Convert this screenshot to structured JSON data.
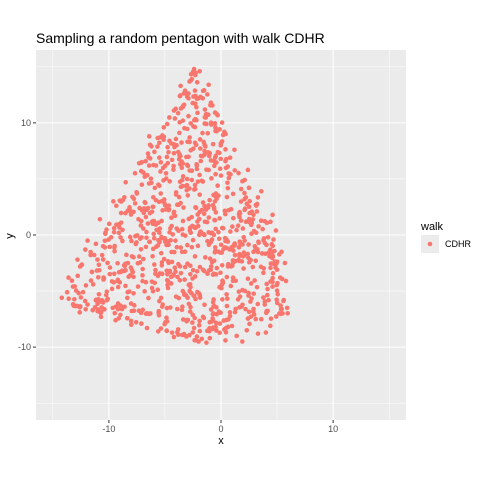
{
  "chart_data": {
    "type": "scatter",
    "title": "Sampling a random pentagon with walk CDHR",
    "xlabel": "x",
    "ylabel": "y",
    "xlim": [
      -16.5,
      16.5
    ],
    "ylim": [
      -16.5,
      16.5
    ],
    "x_ticks": [
      -10,
      0,
      10
    ],
    "y_ticks": [
      -10,
      0,
      10
    ],
    "x_tick_labels": [
      "-10",
      "0",
      "10"
    ],
    "y_tick_labels": [
      "-10",
      "0",
      "10"
    ],
    "grid": true,
    "legend": {
      "title": "walk",
      "position": "right",
      "entries": [
        "CDHR"
      ]
    },
    "colors": {
      "panel": "#ebebeb",
      "grid": "#ffffff",
      "point": "#f8766d"
    },
    "region_vertices": [
      [
        -2.3,
        15.0
      ],
      [
        -14.5,
        -6.0
      ],
      [
        -2.0,
        -9.5
      ],
      [
        6.0,
        -7.0
      ],
      [
        5.0,
        0.0
      ]
    ],
    "series": [
      {
        "name": "CDHR",
        "sample_size": 1000,
        "points": [
          [
            -2.4,
            14.8
          ],
          [
            -1.9,
            14.6
          ],
          [
            -2.6,
            13.9
          ],
          [
            -3.1,
            12.6
          ],
          [
            -1.5,
            12.9
          ],
          [
            -0.9,
            11.8
          ],
          [
            -4.2,
            11.1
          ],
          [
            -2.2,
            11.4
          ],
          [
            -0.4,
            10.8
          ],
          [
            -5.1,
            9.6
          ],
          [
            -3.4,
            10.2
          ],
          [
            -1.3,
            9.9
          ],
          [
            0.3,
            9.2
          ],
          [
            -6.2,
            7.9
          ],
          [
            -4.6,
            8.4
          ],
          [
            -2.8,
            8.7
          ],
          [
            -0.7,
            8.1
          ],
          [
            1.2,
            7.6
          ],
          [
            -7.3,
            6.4
          ],
          [
            -5.5,
            6.9
          ],
          [
            -3.7,
            7.2
          ],
          [
            -1.8,
            6.6
          ],
          [
            0.6,
            6.1
          ],
          [
            2.4,
            5.8
          ],
          [
            -8.5,
            4.7
          ],
          [
            -6.8,
            5.2
          ],
          [
            -4.9,
            5.5
          ],
          [
            -2.6,
            4.9
          ],
          [
            -0.3,
            4.4
          ],
          [
            1.8,
            4.1
          ],
          [
            3.6,
            3.9
          ],
          [
            -9.6,
            3.0
          ],
          [
            -7.9,
            3.4
          ],
          [
            -5.8,
            3.1
          ],
          [
            -3.9,
            2.7
          ],
          [
            -1.6,
            2.9
          ],
          [
            0.9,
            2.3
          ],
          [
            3.2,
            2.1
          ],
          [
            4.6,
            1.8
          ],
          [
            -10.8,
            1.4
          ],
          [
            -8.9,
            1.1
          ],
          [
            -6.7,
            1.6
          ],
          [
            -4.4,
            0.8
          ],
          [
            -2.1,
            1.2
          ],
          [
            0.2,
            0.6
          ],
          [
            2.7,
            0.9
          ],
          [
            4.9,
            0.4
          ],
          [
            -11.9,
            -0.5
          ],
          [
            -9.8,
            -0.2
          ],
          [
            -7.6,
            -0.8
          ],
          [
            -5.3,
            -0.3
          ],
          [
            -3.0,
            -0.9
          ],
          [
            -0.8,
            -0.4
          ],
          [
            1.6,
            -1.1
          ],
          [
            3.9,
            -0.7
          ],
          [
            5.4,
            -1.5
          ],
          [
            -12.8,
            -2.2
          ],
          [
            -10.6,
            -1.8
          ],
          [
            -8.3,
            -2.5
          ],
          [
            -6.1,
            -1.9
          ],
          [
            -3.8,
            -2.6
          ],
          [
            -1.4,
            -2.0
          ],
          [
            0.9,
            -2.8
          ],
          [
            3.1,
            -2.3
          ],
          [
            5.0,
            -3.1
          ],
          [
            -13.6,
            -3.8
          ],
          [
            -11.5,
            -3.3
          ],
          [
            -9.2,
            -4.0
          ],
          [
            -7.0,
            -3.6
          ],
          [
            -4.7,
            -4.2
          ],
          [
            -2.3,
            -3.7
          ],
          [
            0.1,
            -4.4
          ],
          [
            2.4,
            -3.9
          ],
          [
            4.6,
            -4.6
          ],
          [
            5.8,
            -4.1
          ],
          [
            -14.2,
            -5.6
          ],
          [
            -12.3,
            -5.1
          ],
          [
            -10.1,
            -5.7
          ],
          [
            -7.8,
            -5.2
          ],
          [
            -5.5,
            -5.9
          ],
          [
            -3.1,
            -5.4
          ],
          [
            -0.7,
            -6.0
          ],
          [
            1.7,
            -5.5
          ],
          [
            3.9,
            -6.2
          ],
          [
            5.6,
            -5.8
          ],
          [
            -13.1,
            -6.3
          ],
          [
            -11.0,
            -6.8
          ],
          [
            -8.6,
            -6.4
          ],
          [
            -6.3,
            -7.0
          ],
          [
            -3.9,
            -6.6
          ],
          [
            -1.6,
            -7.3
          ],
          [
            0.8,
            -6.9
          ],
          [
            3.1,
            -7.5
          ],
          [
            5.2,
            -7.0
          ],
          [
            -9.4,
            -7.6
          ],
          [
            -7.1,
            -7.9
          ],
          [
            -4.8,
            -7.7
          ],
          [
            -2.4,
            -8.3
          ],
          [
            -0.1,
            -7.9
          ],
          [
            2.3,
            -8.5
          ],
          [
            4.4,
            -8.1
          ],
          [
            -5.6,
            -8.6
          ],
          [
            -3.3,
            -8.9
          ],
          [
            -1.0,
            -9.2
          ],
          [
            1.4,
            -9.0
          ],
          [
            3.3,
            -8.8
          ],
          [
            -2.0,
            -9.5
          ],
          [
            0.4,
            -9.4
          ],
          [
            -3.6,
            13.3
          ],
          [
            -1.1,
            13.4
          ],
          [
            -2.9,
            10.6
          ],
          [
            -4.8,
            9.9
          ],
          [
            -0.5,
            9.6
          ],
          [
            -6.4,
            8.8
          ],
          [
            -3.5,
            6.0
          ],
          [
            -5.9,
            4.2
          ],
          [
            -8.1,
            2.2
          ],
          [
            -10.3,
            0.2
          ],
          [
            -12.1,
            -1.3
          ],
          [
            -13.2,
            -4.6
          ],
          [
            -12.6,
            -6.9
          ],
          [
            -10.7,
            -7.3
          ],
          [
            -8.0,
            -8.0
          ],
          [
            -6.6,
            -8.3
          ],
          [
            -4.2,
            -9.1
          ],
          [
            -1.3,
            -9.6
          ],
          [
            1.9,
            -9.5
          ],
          [
            4.0,
            -8.7
          ],
          [
            5.9,
            -6.5
          ],
          [
            5.7,
            -2.5
          ],
          [
            4.2,
            -0.2
          ],
          [
            2.1,
            3.2
          ],
          [
            0.0,
            5.3
          ],
          [
            -1.0,
            7.3
          ],
          [
            -2.0,
            12.2
          ],
          [
            -4.0,
            3.8
          ],
          [
            -6.5,
            2.4
          ],
          [
            -2.7,
            0.2
          ],
          [
            -0.5,
            -1.4
          ],
          [
            2.0,
            -1.9
          ],
          [
            -9.9,
            -2.9
          ],
          [
            -7.4,
            -4.6
          ],
          [
            -2.8,
            -5.0
          ],
          [
            0.5,
            -5.3
          ],
          [
            2.9,
            -6.6
          ],
          [
            -5.2,
            -6.2
          ],
          [
            -11.4,
            -4.4
          ],
          [
            -6.0,
            0.1
          ],
          [
            -1.9,
            3.6
          ],
          [
            1.1,
            1.5
          ]
        ]
      }
    ]
  }
}
